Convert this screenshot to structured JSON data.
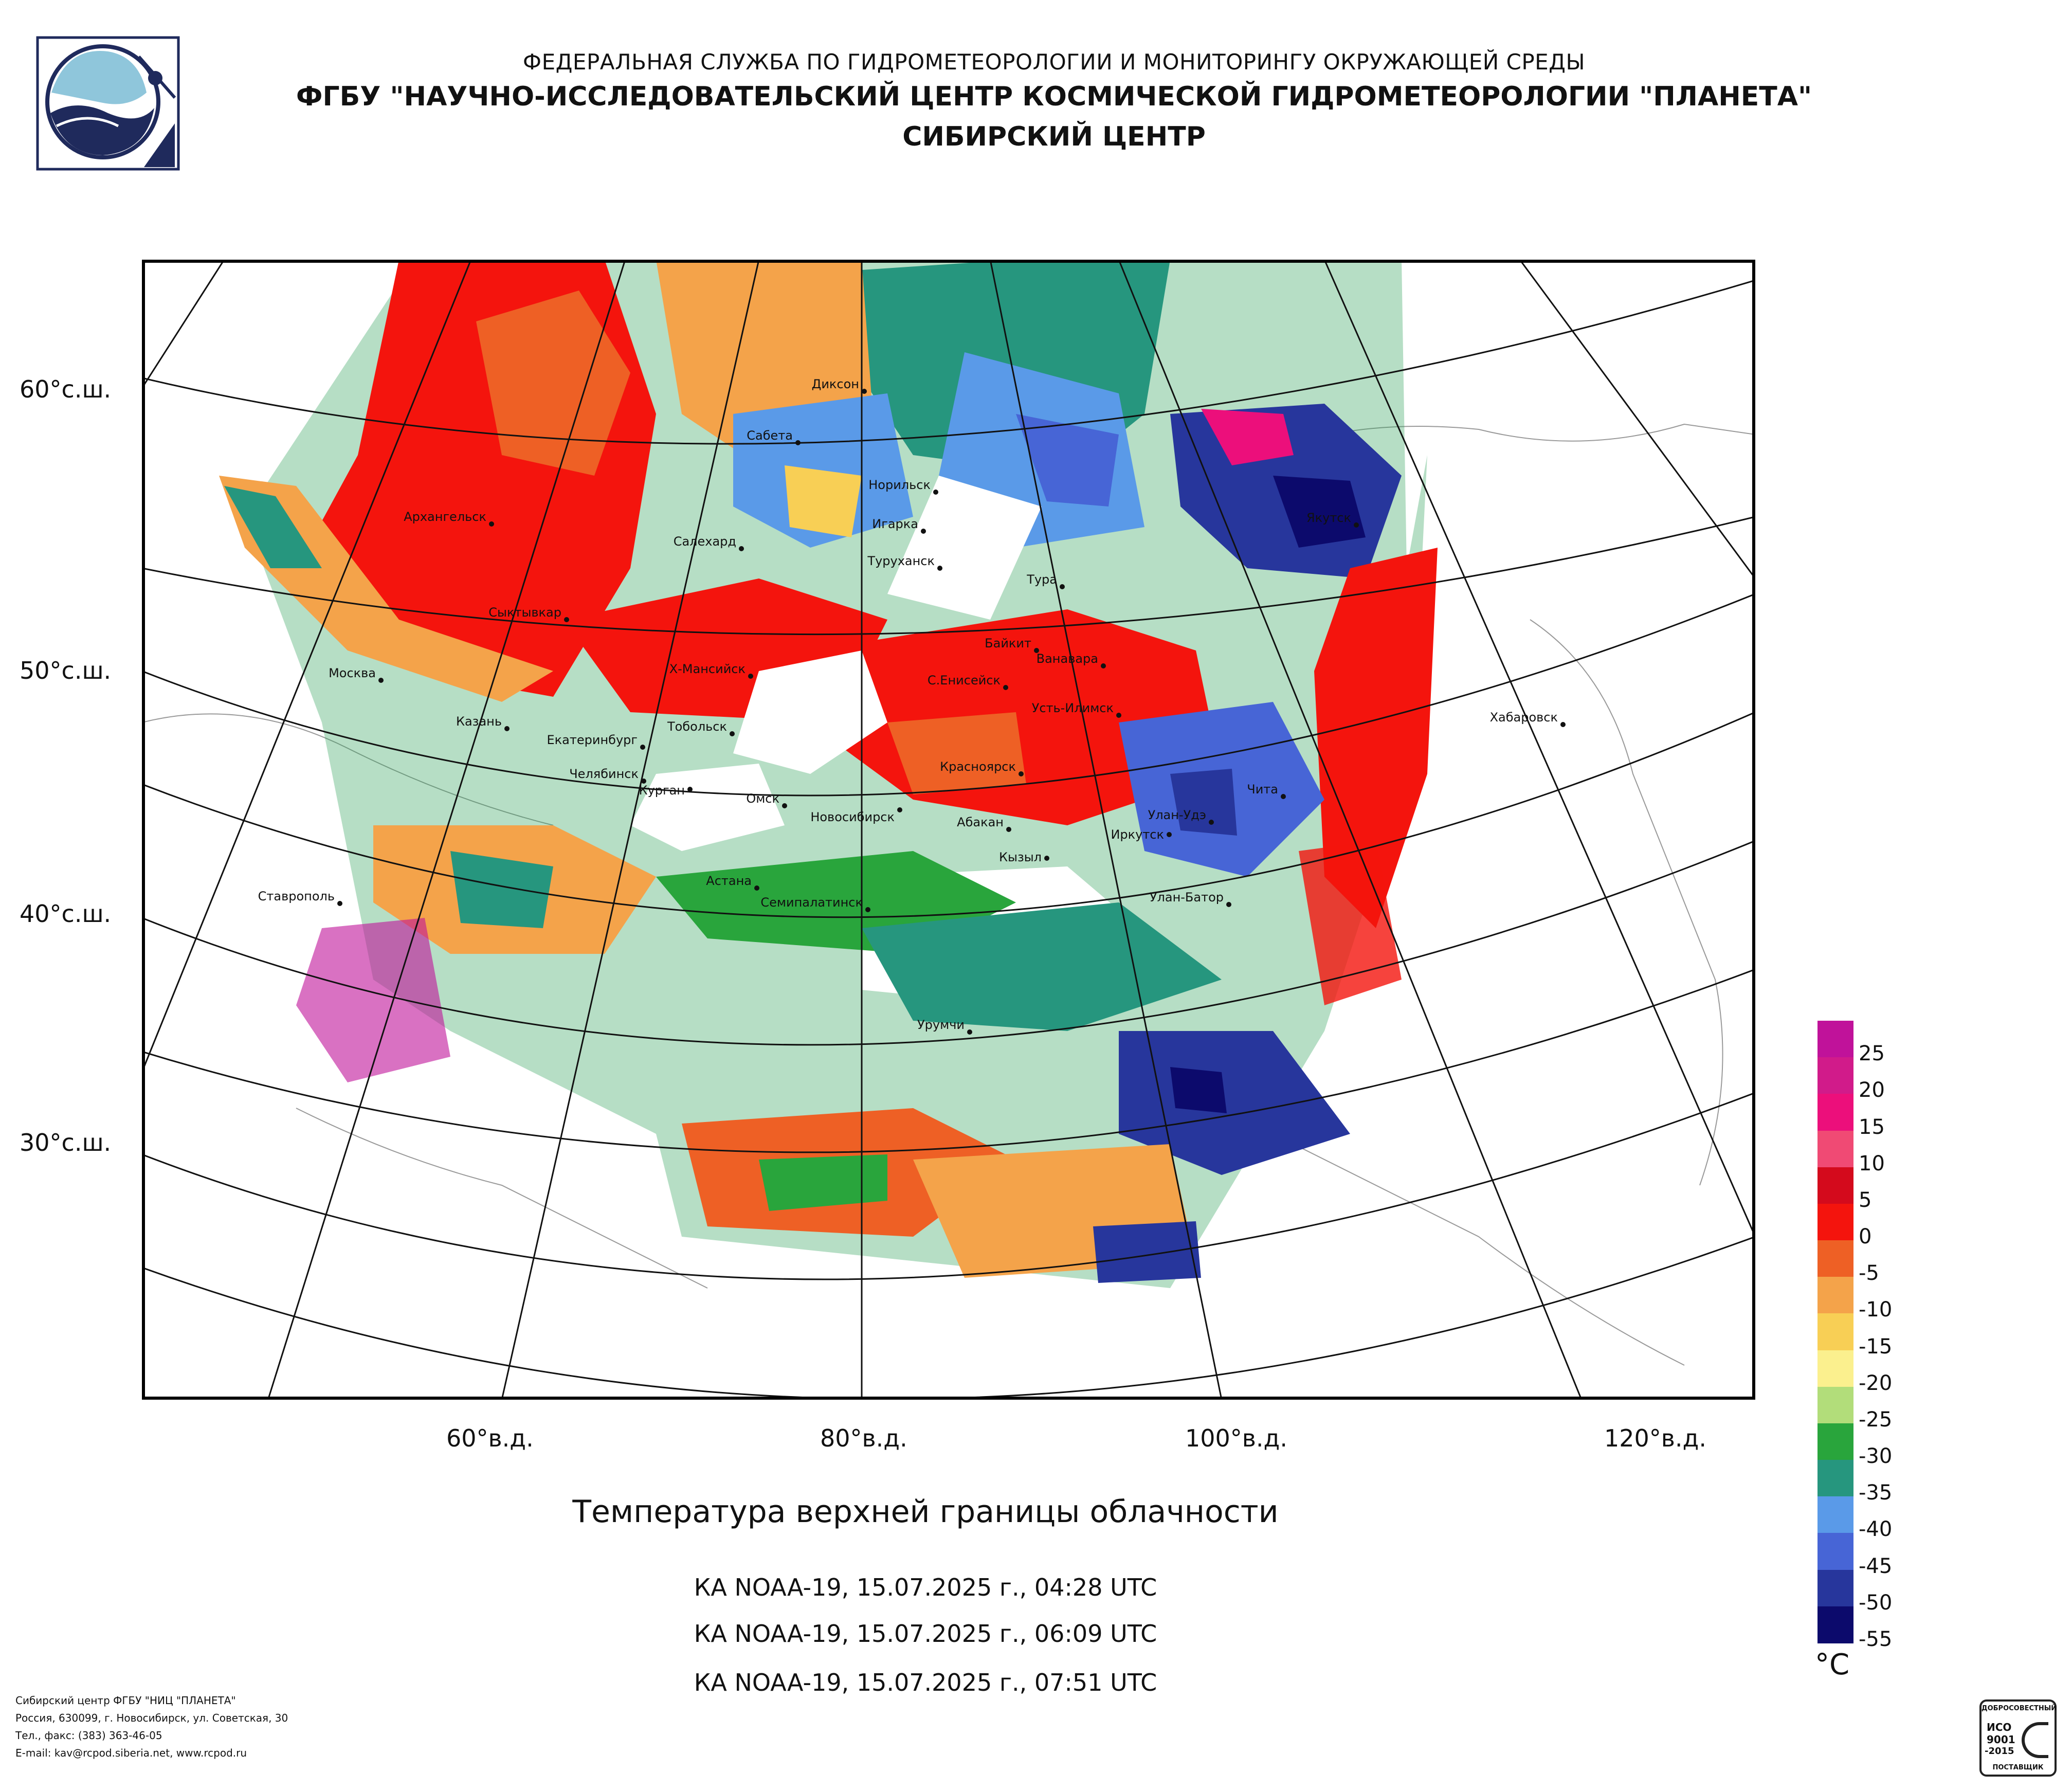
{
  "header": {
    "line1": "ФЕДЕРАЛЬНАЯ СЛУЖБА ПО ГИДРОМЕТЕОРОЛОГИИ И МОНИТОРИНГУ ОКРУЖАЮЩЕЙ СРЕДЫ",
    "line2": "ФГБУ \"НАУЧНО-ИССЛЕДОВАТЕЛЬСКИЙ ЦЕНТР КОСМИЧЕСКОЙ ГИДРОМЕТЕОРОЛОГИИ \"ПЛАНЕТА\"",
    "line3": "СИБИРСКИЙ ЦЕНТР"
  },
  "map": {
    "lat_labels": [
      "60°с.ш.",
      "50°с.ш.",
      "40°с.ш.",
      "30°с.ш."
    ],
    "lon_labels": [
      "60°в.д.",
      "80°в.д.",
      "100°в.д.",
      "120°в.д."
    ],
    "cities": [
      "Диксон",
      "Сабета",
      "Норильск",
      "Архангельск",
      "Игарка",
      "Салехард",
      "Туруханск",
      "Тура",
      "Якутск",
      "Сыктывкар",
      "Байкит",
      "Ванавара",
      "Х-Мансийск",
      "С.Енисейск",
      "Москва",
      "Усть-Илимск",
      "Хабаровск",
      "Казань",
      "Тобольск",
      "Екатеринбург",
      "Челябинск",
      "Курган",
      "Красноярск",
      "Чита",
      "Омск",
      "Новосибирск",
      "Абакан",
      "Улан-Удэ",
      "Иркутск",
      "Кызыл",
      "Ставрополь",
      "Астана",
      "Семипалатинск",
      "Улан-Батор",
      "Урумчи"
    ]
  },
  "title": "Температура верхней границы облачности",
  "passes": [
    "КА NOAA-19, 15.07.2025 г., 04:28 UTC",
    "КА NOAA-19, 15.07.2025 г., 06:09 UTC",
    "КА NOAA-19, 15.07.2025 г., 07:51 UTC"
  ],
  "legend": {
    "unit": "°C",
    "labels": [
      "25",
      "20",
      "15",
      "10",
      "5",
      "0",
      "-5",
      "-10",
      "-15",
      "-20",
      "-25",
      "-30",
      "-35",
      "-40",
      "-45",
      "-50",
      "-55"
    ],
    "colors": [
      "#c0129a",
      "#d11b8a",
      "#ec0f7b",
      "#f04a74",
      "#d40a1c",
      "#f4140d",
      "#ee6025",
      "#f4a34a",
      "#f8cf55",
      "#fbf08e",
      "#b2dd7a",
      "#29a53c",
      "#26967e",
      "#5a9ae8",
      "#4765d6",
      "#27369c",
      "#0c0a6c"
    ]
  },
  "footer": {
    "line1": "Сибирский центр ФГБУ \"НИЦ \"ПЛАНЕТА\"",
    "line2": "Россия, 630099, г. Новосибирск, ул. Советская, 30",
    "line3": "Тел., факс: (383) 363-46-05",
    "line4": "E-mail: kav@rcpod.siberia.net, www.rcpod.ru"
  },
  "cert": {
    "top": "ДОБРОСОВЕСТНЫЙ",
    "line1": "ИСО",
    "line2": "9001",
    "line3": "-2015",
    "bottom": "ПОСТАВЩИК"
  }
}
